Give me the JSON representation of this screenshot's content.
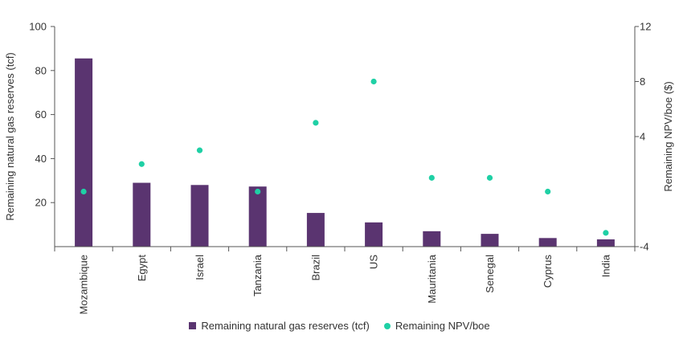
{
  "chart_data": {
    "type": "bar",
    "categories": [
      "Mozambique",
      "Egypt",
      "Israel",
      "Tanzania",
      "Brazil",
      "US",
      "Mauritania",
      "Senegal",
      "Cyprus",
      "India"
    ],
    "series": [
      {
        "name": "Remaining natural gas reserves (tcf)",
        "type": "bar",
        "axis": "left",
        "color": "#5a3470",
        "values": [
          85.5,
          29,
          28,
          27.3,
          15.3,
          11,
          7,
          5.8,
          3.9,
          3.3
        ]
      },
      {
        "name": "Remaining NPV/boe",
        "type": "scatter",
        "axis": "right",
        "color": "#1fd0a5",
        "values": [
          0,
          2,
          3,
          0,
          5,
          8,
          1,
          1,
          0,
          -3
        ]
      }
    ],
    "ylabel": "Remaining natural gas reserves (tcf)",
    "ylim": [
      0,
      100
    ],
    "yticks": [
      "20",
      "40",
      "60",
      "80",
      "100"
    ],
    "y2label": "Remaining NPV/boe ($)",
    "y2lim": [
      -4,
      12
    ],
    "y2ticks": [
      "-4",
      "4",
      "8",
      "12"
    ],
    "grid": false,
    "legend_position": "bottom"
  }
}
